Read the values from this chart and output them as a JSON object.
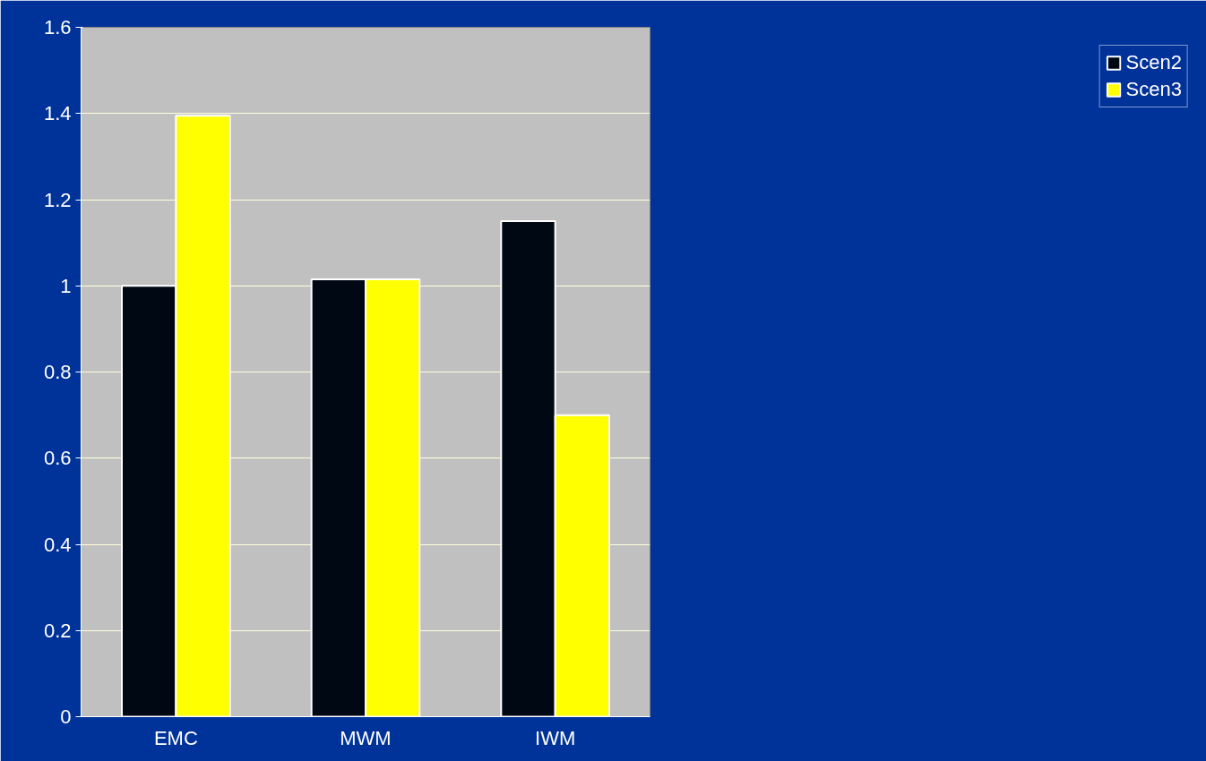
{
  "chart_data": {
    "type": "bar",
    "categories": [
      "EMC",
      "MWM",
      "IWM"
    ],
    "series": [
      {
        "name": "Scen2",
        "color": "#000814",
        "values": [
          1.0,
          1.015,
          1.15
        ]
      },
      {
        "name": "Scen3",
        "color": "#ffff00",
        "values": [
          1.395,
          1.015,
          0.7
        ]
      }
    ],
    "ylim": [
      0,
      1.6
    ],
    "yticks": [
      0,
      0.2,
      0.4,
      0.6,
      0.8,
      1,
      1.2,
      1.4,
      1.6
    ],
    "grid": "y",
    "legend": "right"
  }
}
